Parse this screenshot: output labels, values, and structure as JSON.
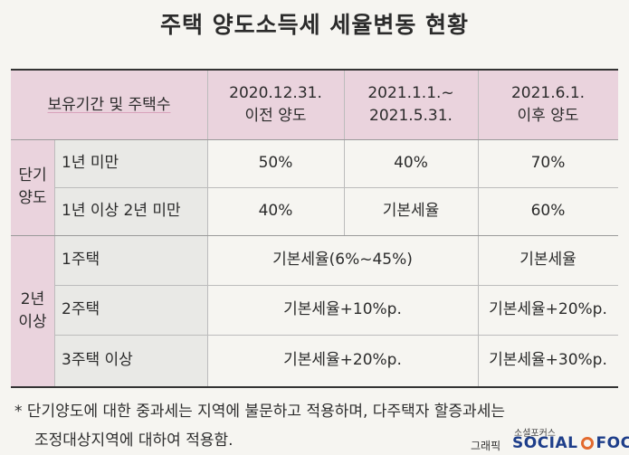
{
  "title": "주택 양도소득세 세율변동 현황",
  "table": {
    "header": {
      "category": "보유기간 및 주택수",
      "periods": [
        {
          "line1": "2020.12.31.",
          "line2": "이전 양도"
        },
        {
          "line1": "2021.1.1.~",
          "line2": "2021.5.31."
        },
        {
          "line1": "2021.6.1.",
          "line2": "이후 양도"
        }
      ]
    },
    "short_term": {
      "group_line1": "단기",
      "group_line2": "양도",
      "rows": [
        {
          "label": "1년 미만",
          "values": [
            "50%",
            "40%",
            "70%"
          ]
        },
        {
          "label": "1년 이상 2년 미만",
          "values": [
            "40%",
            "기본세율",
            "60%"
          ]
        }
      ]
    },
    "long_term": {
      "group_line1": "2년",
      "group_line2": "이상",
      "rows": [
        {
          "label": "1주택",
          "before_june": "기본세율(6%~45%)",
          "after_june": "기본세율"
        },
        {
          "label": "2주택",
          "before_june": "기본세율+10%p.",
          "after_june": "기본세율+20%p."
        },
        {
          "label": "3주택 이상",
          "before_june": "기본세율+20%p.",
          "after_june": "기본세율+30%p."
        }
      ]
    }
  },
  "footnote": {
    "line1": "* 단기양도에 대한 중과세는 지역에 불문하고 적용하며, 다주택자 할증과세는",
    "line2": "조정대상지역에 대하여 적용함."
  },
  "brand": {
    "sub": "소셜포커스",
    "graphic": "그래픽",
    "social": "SOCIAL",
    "focus": "FOCUS"
  }
}
